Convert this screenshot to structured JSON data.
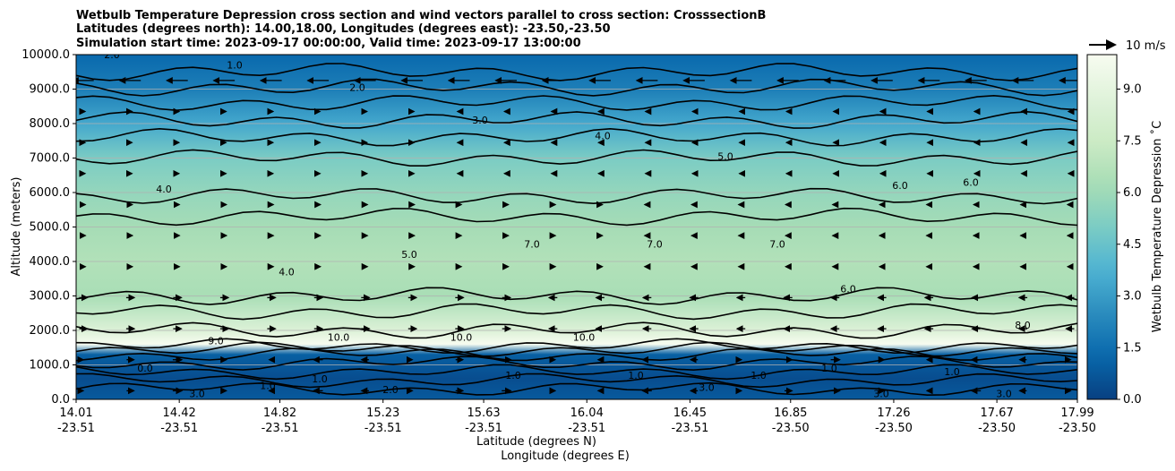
{
  "chart_data": {
    "type": "heatmap",
    "title_lines": [
      "Wetbulb Temperature Depression cross section and wind vectors parallel to cross section: CrosssectionB",
      "Latitudes (degrees north): 14.00,18.00, Longitudes (degrees east): -23.50,-23.50",
      "Simulation start time: 2023-09-17 00:00:00, Valid time: 2023-09-17 13:00:00"
    ],
    "ylabel": "Altitude (meters)",
    "xlabel_primary": "Latitude (degrees N)",
    "xlabel_secondary": "Longitude (degrees E)",
    "ylim": [
      0,
      10000
    ],
    "y_ticks": [
      "0.0",
      "1000.0",
      "2000.0",
      "3000.0",
      "4000.0",
      "5000.0",
      "6000.0",
      "7000.0",
      "8000.0",
      "9000.0",
      "10000.0"
    ],
    "x_ticks": [
      {
        "lat": "14.01",
        "lon": "-23.51"
      },
      {
        "lat": "14.42",
        "lon": "-23.51"
      },
      {
        "lat": "14.82",
        "lon": "-23.51"
      },
      {
        "lat": "15.23",
        "lon": "-23.51"
      },
      {
        "lat": "15.63",
        "lon": "-23.51"
      },
      {
        "lat": "16.04",
        "lon": "-23.51"
      },
      {
        "lat": "16.45",
        "lon": "-23.51"
      },
      {
        "lat": "16.85",
        "lon": "-23.50"
      },
      {
        "lat": "17.26",
        "lon": "-23.50"
      },
      {
        "lat": "17.67",
        "lon": "-23.50"
      },
      {
        "lat": "17.99",
        "lon": "-23.50"
      }
    ],
    "colorbar": {
      "label": "Wetbulb Temperature Depression ˚C",
      "range": [
        0,
        10
      ],
      "ticks": [
        "0.0",
        "1.5",
        "3.0",
        "4.5",
        "6.0",
        "7.5",
        "9.0"
      ]
    },
    "wind_key": {
      "label": "10 m/s",
      "speed": 10
    },
    "contour_levels": [
      1,
      2,
      3,
      4,
      5,
      6,
      7,
      8,
      9,
      10
    ],
    "contour_labels": [
      "2.0",
      "1.0",
      "2.0",
      "3.0",
      "4.0",
      "5.0",
      "6.0",
      "6.0",
      "4.0",
      "4.0",
      "5.0",
      "7.0",
      "7.0",
      "7.0",
      "6.0",
      "8.0",
      "9.0",
      "10.0",
      "10.0",
      "10.0",
      "3.0",
      "1.0",
      "1.0",
      "0.0",
      "1.0",
      "2.0",
      "1.0",
      "1.0",
      "1.0",
      "3.0",
      "3.0",
      "3.0",
      "1.0"
    ],
    "field_profile": [
      {
        "alt": 0,
        "value": 0.8
      },
      {
        "alt": 600,
        "value": 0.4
      },
      {
        "alt": 1300,
        "value": 1.0
      },
      {
        "alt": 1600,
        "value": 10.0
      },
      {
        "alt": 2000,
        "value": 8.5
      },
      {
        "alt": 3000,
        "value": 6.3
      },
      {
        "alt": 4000,
        "value": 6.6
      },
      {
        "alt": 5000,
        "value": 6.2
      },
      {
        "alt": 6000,
        "value": 5.7
      },
      {
        "alt": 7000,
        "value": 5.0
      },
      {
        "alt": 8000,
        "value": 3.4
      },
      {
        "alt": 9000,
        "value": 2.0
      },
      {
        "alt": 10000,
        "value": 1.3
      }
    ]
  }
}
